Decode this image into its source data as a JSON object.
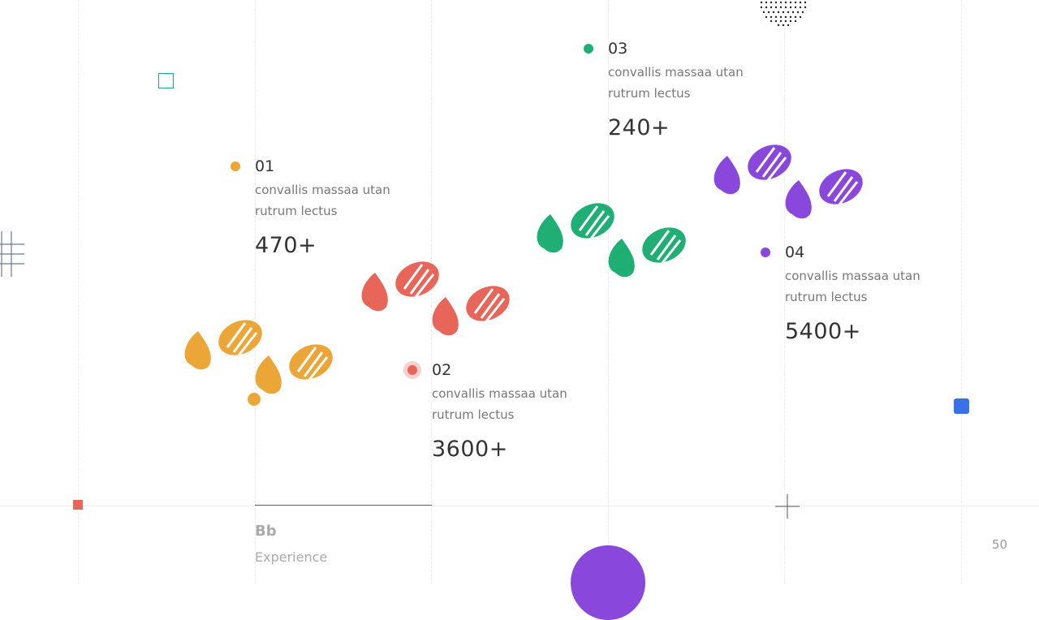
{
  "colors": {
    "orange": "#eba637",
    "red": "#e8655a",
    "green": "#1fae73",
    "purple": "#8a47db",
    "blue": "#3872e8",
    "teal": "#2aa08c"
  },
  "points": [
    {
      "num": "01",
      "desc": "convallis massaa utan rutrum lectus",
      "value": "470+",
      "color": "#eba637"
    },
    {
      "num": "02",
      "desc": "convallis massaa utan rutrum lectus",
      "value": "3600+",
      "color": "#e8655a"
    },
    {
      "num": "03",
      "desc": "convallis massaa utan rutrum lectus",
      "value": "240+",
      "color": "#1fae73"
    },
    {
      "num": "04",
      "desc": "convallis massaa utan rutrum lectus",
      "value": "5400+",
      "color": "#8a47db"
    }
  ],
  "footer": {
    "brand": "Bb",
    "subtitle": "Experience",
    "page_number": "50"
  },
  "icons": {
    "footprint": "footprint-icon",
    "grid": "grid-icon",
    "plus": "plus-icon",
    "dot_pattern": "dot-pattern-icon"
  }
}
